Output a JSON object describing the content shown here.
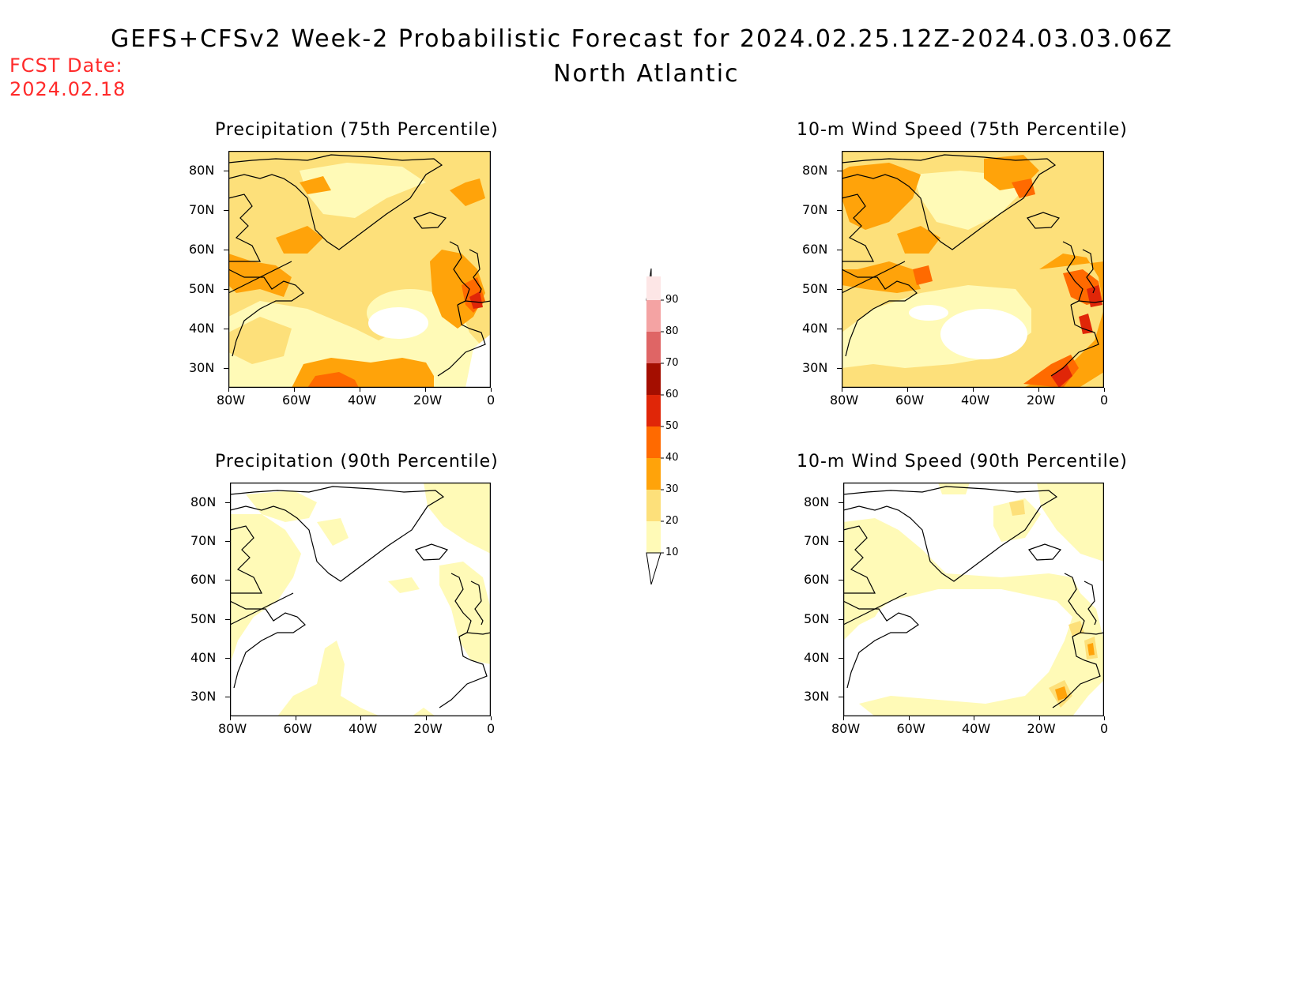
{
  "title": "GEFS+CFSv2 Week-2 Probabilistic Forecast for 2024.02.25.12Z-2024.03.03.06Z",
  "subtitle": "North Atlantic",
  "fcst": {
    "label": "FCST Date:",
    "date": "2024.02.18"
  },
  "panels": [
    {
      "title": "Precipitation (75th Percentile)"
    },
    {
      "title": "10-m Wind Speed (75th Percentile)"
    },
    {
      "title": "Precipitation (90th Percentile)"
    },
    {
      "title": "10-m Wind Speed (90th Percentile)"
    }
  ],
  "lat_ticks": [
    "80N",
    "70N",
    "60N",
    "50N",
    "40N",
    "30N"
  ],
  "lon_ticks": [
    "80W",
    "60W",
    "40W",
    "20W",
    "0"
  ],
  "colorbar": {
    "levels": [
      "90",
      "80",
      "70",
      "60",
      "50",
      "40",
      "30",
      "20",
      "10"
    ],
    "colors": [
      "#fde6e6",
      "#f4a3a3",
      "#df6565",
      "#a40e00",
      "#e02608",
      "#ff6a00",
      "#ffa30a",
      "#fde07a",
      "#fffab7"
    ]
  },
  "palette": {
    "p10": "#fffab7",
    "p20": "#fde07a",
    "p30": "#ffa30a",
    "p40": "#ff6a00",
    "p50": "#e02608"
  }
}
